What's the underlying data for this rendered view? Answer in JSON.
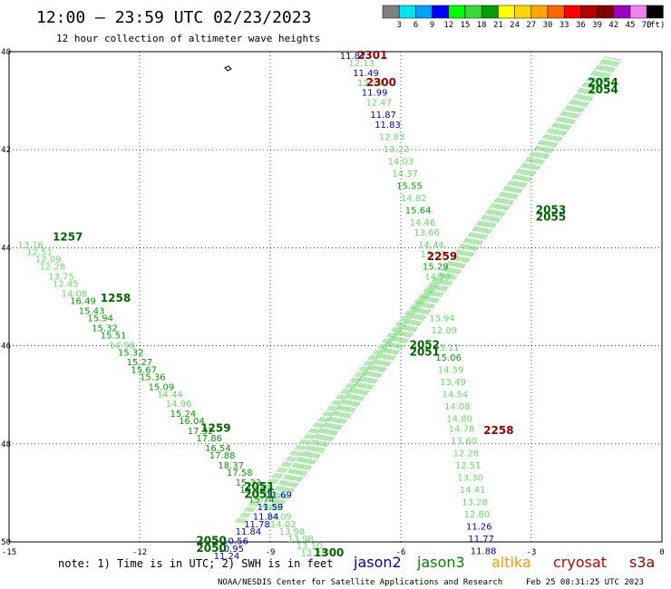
{
  "chart_data": {
    "type": "scatter",
    "title": "12:00 — 23:59 UTC 02/23/2023",
    "subtitle": "12 hour collection of altimeter wave heights",
    "xlim": [
      -15,
      0
    ],
    "ylim": [
      -50,
      -40
    ],
    "x_ticks": [
      "-15",
      "-12",
      "-9",
      "-6",
      "-3",
      "0"
    ],
    "y_ticks": [
      "-40",
      "-42",
      "-44",
      "-46",
      "-48",
      "-50"
    ],
    "grid": true,
    "colorbar": {
      "unit": "(ft)",
      "ticks": [
        "3",
        "6",
        "9",
        "12",
        "15",
        "18",
        "21",
        "24",
        "27",
        "30",
        "33",
        "36",
        "39",
        "42",
        "45",
        "70"
      ],
      "colors": [
        "#808080",
        "#00e5ee",
        "#00a0ff",
        "#0000ff",
        "#00ff00",
        "#39d939",
        "#00a000",
        "#ffff00",
        "#ffd700",
        "#ffa500",
        "#ff6600",
        "#ff0000",
        "#b00000",
        "#800000",
        "#a000c0",
        "#ee82ee",
        "#000000"
      ]
    },
    "series": [
      {
        "points": [
          {
            "x": -14.8,
            "y": -44.0,
            "v": "13.16",
            "c": "#66dd66"
          },
          {
            "x": -14.6,
            "y": -44.15,
            "v": "12.51",
            "c": "#66dd66"
          },
          {
            "x": -14.4,
            "y": -44.3,
            "v": "12.09",
            "c": "#66dd66"
          },
          {
            "x": -14.3,
            "y": -44.45,
            "v": "12.28",
            "c": "#66dd66"
          },
          {
            "x": -14.1,
            "y": -44.65,
            "v": "13.75",
            "c": "#66dd66"
          },
          {
            "x": -14.0,
            "y": -44.8,
            "v": "12.45",
            "c": "#66dd66"
          },
          {
            "x": -13.8,
            "y": -45.0,
            "v": "14.08",
            "c": "#66dd66"
          },
          {
            "x": -13.6,
            "y": -45.15,
            "v": "16.49",
            "c": "#00a000"
          },
          {
            "x": -13.4,
            "y": -45.35,
            "v": "15.43",
            "c": "#00a000"
          },
          {
            "x": -13.2,
            "y": -45.5,
            "v": "15.94",
            "c": "#00a000"
          },
          {
            "x": -13.1,
            "y": -45.7,
            "v": "15.32",
            "c": "#00a000"
          },
          {
            "x": -12.9,
            "y": -45.85,
            "v": "15.51",
            "c": "#00a000"
          },
          {
            "x": -12.7,
            "y": -46.05,
            "v": "14.98",
            "c": "#66dd66"
          },
          {
            "x": -12.5,
            "y": -46.2,
            "v": "15.32",
            "c": "#00a000"
          },
          {
            "x": -12.3,
            "y": -46.4,
            "v": "15.27",
            "c": "#00a000"
          },
          {
            "x": -12.2,
            "y": -46.55,
            "v": "15.67",
            "c": "#00a000"
          },
          {
            "x": -12.0,
            "y": -46.7,
            "v": "15.36",
            "c": "#00a000"
          },
          {
            "x": -11.8,
            "y": -46.9,
            "v": "15.09",
            "c": "#00a000"
          },
          {
            "x": -11.6,
            "y": -47.05,
            "v": "14.44",
            "c": "#66dd66"
          },
          {
            "x": -11.4,
            "y": -47.25,
            "v": "14.96",
            "c": "#66dd66"
          },
          {
            "x": -11.3,
            "y": -47.45,
            "v": "15.24",
            "c": "#00a000"
          },
          {
            "x": -11.1,
            "y": -47.6,
            "v": "16.04",
            "c": "#00a000"
          },
          {
            "x": -10.9,
            "y": -47.8,
            "v": "17.32",
            "c": "#00a000"
          },
          {
            "x": -10.7,
            "y": -47.95,
            "v": "17.86",
            "c": "#00a000"
          },
          {
            "x": -10.5,
            "y": -48.15,
            "v": "16.54",
            "c": "#00a000"
          },
          {
            "x": -10.4,
            "y": -48.3,
            "v": "17.88",
            "c": "#00a000"
          },
          {
            "x": -10.2,
            "y": -48.5,
            "v": "18.37",
            "c": "#00a000"
          },
          {
            "x": -10.0,
            "y": -48.65,
            "v": "17.58",
            "c": "#00a000"
          },
          {
            "x": -9.8,
            "y": -48.85,
            "v": "15.33",
            "c": "#00a000"
          },
          {
            "x": -9.7,
            "y": -49.0,
            "v": "15.32",
            "c": "#00a000"
          },
          {
            "x": -9.5,
            "y": -49.2,
            "v": "15.74",
            "c": "#00a000"
          },
          {
            "x": -9.3,
            "y": -49.35,
            "v": "14.76",
            "c": "#66dd66"
          },
          {
            "x": -9.1,
            "y": -49.55,
            "v": "14.09",
            "c": "#66dd66"
          },
          {
            "x": -9.0,
            "y": -49.7,
            "v": "14.02",
            "c": "#66dd66"
          },
          {
            "x": -8.8,
            "y": -49.85,
            "v": "13.98",
            "c": "#66dd66"
          },
          {
            "x": -8.6,
            "y": -50.0,
            "v": "13.98",
            "c": "#66dd66"
          },
          {
            "x": -8.4,
            "y": -50.15,
            "v": "13.10",
            "c": "#66dd66"
          },
          {
            "x": -8.3,
            "y": -50.3,
            "v": "12.25",
            "c": "#66dd66"
          }
        ]
      },
      {
        "points": [
          {
            "x": -7.4,
            "y": -40.15,
            "v": "11.87",
            "c": "#0000cc"
          },
          {
            "x": -7.2,
            "y": -40.3,
            "v": "12.13",
            "c": "#66dd66"
          },
          {
            "x": -7.1,
            "y": -40.5,
            "v": "11.49",
            "c": "#0000cc"
          },
          {
            "x": -7.0,
            "y": -40.7,
            "v": "12.84",
            "c": "#66dd66"
          },
          {
            "x": -6.9,
            "y": -40.9,
            "v": "11.99",
            "c": "#0000cc"
          },
          {
            "x": -6.8,
            "y": -41.1,
            "v": "12.47",
            "c": "#66dd66"
          },
          {
            "x": -6.7,
            "y": -41.35,
            "v": "11.87",
            "c": "#0000cc"
          },
          {
            "x": -6.6,
            "y": -41.55,
            "v": "11.83",
            "c": "#0000cc"
          },
          {
            "x": -6.5,
            "y": -41.8,
            "v": "12.83",
            "c": "#66dd66"
          },
          {
            "x": -6.4,
            "y": -42.05,
            "v": "13.22",
            "c": "#66dd66"
          },
          {
            "x": -6.3,
            "y": -42.3,
            "v": "14.03",
            "c": "#66dd66"
          },
          {
            "x": -6.2,
            "y": -42.55,
            "v": "14.37",
            "c": "#66dd66"
          },
          {
            "x": -6.1,
            "y": -42.8,
            "v": "15.55",
            "c": "#00a000"
          },
          {
            "x": -6.0,
            "y": -43.05,
            "v": "14.82",
            "c": "#66dd66"
          },
          {
            "x": -5.9,
            "y": -43.3,
            "v": "15.64",
            "c": "#00a000"
          },
          {
            "x": -5.8,
            "y": -43.55,
            "v": "14.46",
            "c": "#66dd66"
          },
          {
            "x": -5.7,
            "y": -43.75,
            "v": "13.66",
            "c": "#66dd66"
          },
          {
            "x": -5.6,
            "y": -44.0,
            "v": "14.44",
            "c": "#66dd66"
          },
          {
            "x": -5.55,
            "y": -44.2,
            "v": "13.03",
            "c": "#66dd66"
          },
          {
            "x": -5.5,
            "y": -44.45,
            "v": "15.29",
            "c": "#00a000"
          },
          {
            "x": -5.45,
            "y": -44.65,
            "v": "14.98",
            "c": "#66dd66"
          },
          {
            "x": -5.35,
            "y": -45.5,
            "v": "13.94",
            "c": "#66dd66"
          },
          {
            "x": -5.3,
            "y": -45.75,
            "v": "12.09",
            "c": "#66dd66"
          },
          {
            "x": -5.25,
            "y": -46.1,
            "v": "13.11",
            "c": "#66dd66"
          },
          {
            "x": -5.2,
            "y": -46.3,
            "v": "15.06",
            "c": "#00a000"
          },
          {
            "x": -5.15,
            "y": -46.55,
            "v": "14.59",
            "c": "#66dd66"
          },
          {
            "x": -5.1,
            "y": -46.8,
            "v": "13.49",
            "c": "#66dd66"
          },
          {
            "x": -5.05,
            "y": -47.05,
            "v": "14.54",
            "c": "#66dd66"
          },
          {
            "x": -5.0,
            "y": -47.3,
            "v": "14.08",
            "c": "#66dd66"
          },
          {
            "x": -4.95,
            "y": -47.55,
            "v": "14.80",
            "c": "#66dd66"
          },
          {
            "x": -4.9,
            "y": -47.75,
            "v": "14.78",
            "c": "#66dd66"
          },
          {
            "x": -4.85,
            "y": -48.0,
            "v": "13.60",
            "c": "#66dd66"
          },
          {
            "x": -4.8,
            "y": -48.25,
            "v": "12.28",
            "c": "#66dd66"
          },
          {
            "x": -4.75,
            "y": -48.5,
            "v": "12.51",
            "c": "#66dd66"
          },
          {
            "x": -4.7,
            "y": -48.75,
            "v": "13.30",
            "c": "#66dd66"
          },
          {
            "x": -4.65,
            "y": -49.0,
            "v": "14.41",
            "c": "#66dd66"
          },
          {
            "x": -4.6,
            "y": -49.25,
            "v": "13.28",
            "c": "#66dd66"
          },
          {
            "x": -4.55,
            "y": -49.5,
            "v": "12.80",
            "c": "#66dd66"
          },
          {
            "x": -4.5,
            "y": -49.75,
            "v": "11.26",
            "c": "#0000cc"
          },
          {
            "x": -4.45,
            "y": -50.0,
            "v": "11.77",
            "c": "#0000cc"
          },
          {
            "x": -4.4,
            "y": -50.25,
            "v": "11.88",
            "c": "#0000cc"
          }
        ]
      },
      {
        "points": [
          {
            "x": -9.1,
            "y": -49.1,
            "v": "11.69",
            "c": "#0000cc"
          },
          {
            "x": -9.3,
            "y": -49.35,
            "v": "11.59",
            "c": "#0000cc"
          },
          {
            "x": -9.4,
            "y": -49.55,
            "v": "11.84",
            "c": "#0000cc"
          },
          {
            "x": -9.6,
            "y": -49.7,
            "v": "11.78",
            "c": "#0000cc"
          },
          {
            "x": -9.8,
            "y": -49.85,
            "v": "11.84",
            "c": "#0000cc"
          },
          {
            "x": -10.1,
            "y": -50.05,
            "v": "10.56",
            "c": "#0000cc"
          },
          {
            "x": -10.2,
            "y": -50.2,
            "v": "10.95",
            "c": "#0000cc"
          },
          {
            "x": -10.3,
            "y": -50.35,
            "v": "11.24",
            "c": "#0000cc"
          }
        ]
      }
    ],
    "time_labels": [
      {
        "x": -7.0,
        "y": -40.15,
        "t": "2301",
        "c": "#990000"
      },
      {
        "x": -6.8,
        "y": -40.7,
        "t": "2300",
        "c": "#990000"
      },
      {
        "x": -14.0,
        "y": -43.85,
        "t": "1257",
        "c": "#006600"
      },
      {
        "x": -12.9,
        "y": -45.1,
        "t": "1258",
        "c": "#006600"
      },
      {
        "x": -10.6,
        "y": -47.75,
        "t": "1259",
        "c": "#006600"
      },
      {
        "x": -5.4,
        "y": -44.25,
        "t": "2259",
        "c": "#990000"
      },
      {
        "x": -2.9,
        "y": -43.3,
        "t": "2053",
        "c": "#006600"
      },
      {
        "x": -2.9,
        "y": -43.45,
        "t": "2055",
        "c": "#006600"
      },
      {
        "x": -1.7,
        "y": -40.7,
        "t": "2054",
        "c": "#006600"
      },
      {
        "x": -1.7,
        "y": -40.85,
        "t": "2054",
        "c": "#006600"
      },
      {
        "x": -5.8,
        "y": -46.05,
        "t": "2052",
        "c": "#006600"
      },
      {
        "x": -5.8,
        "y": -46.2,
        "t": "2051",
        "c": "#006600"
      },
      {
        "x": -4.1,
        "y": -47.8,
        "t": "2258",
        "c": "#990000"
      },
      {
        "x": -9.6,
        "y": -48.95,
        "t": "2051",
        "c": "#006600"
      },
      {
        "x": -9.6,
        "y": -49.1,
        "t": "2051",
        "c": "#006600"
      },
      {
        "x": -10.7,
        "y": -50.05,
        "t": "2050",
        "c": "#006600"
      },
      {
        "x": -10.7,
        "y": -50.2,
        "t": "2050",
        "c": "#006600"
      },
      {
        "x": -8.0,
        "y": -50.3,
        "t": "1300",
        "c": "#006600"
      }
    ]
  },
  "note": {
    "prefix": "note:  1) Time is in UTC;  2) SWH is in feet",
    "satellites": [
      {
        "name": "jason2",
        "color": "#0000cc"
      },
      {
        "name": "jason3",
        "color": "#008800"
      },
      {
        "name": "altika",
        "color": "#ff9900"
      },
      {
        "name": "cryosat",
        "color": "#cc0000"
      },
      {
        "name": "s3a",
        "color": "#990000"
      }
    ]
  },
  "footer": {
    "credit": "NOAA/NESDIS Center for Satellite Applications and Research",
    "timestamp": "Feb 25 08:31:25 UTC 2023"
  }
}
